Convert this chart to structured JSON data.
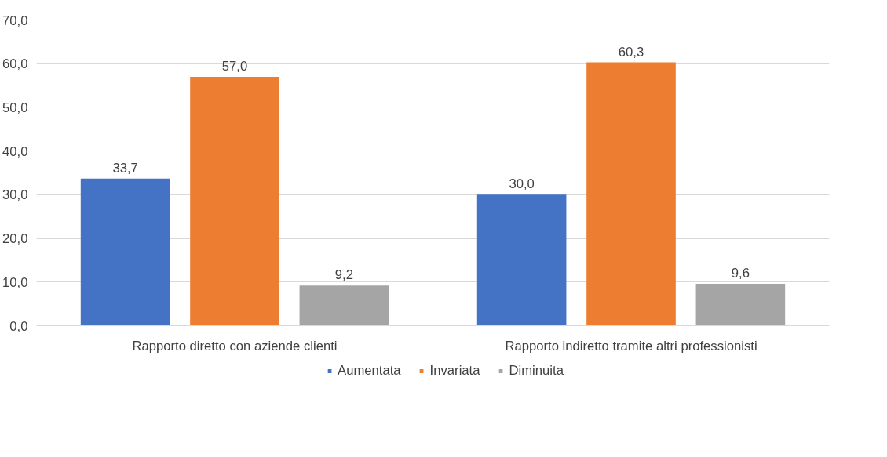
{
  "chart_data": {
    "type": "bar",
    "categories": [
      "Rapporto diretto con aziende clienti",
      "Rapporto indiretto tramite altri professionisti"
    ],
    "series": [
      {
        "name": "Aumentata",
        "color": "#4472c4",
        "values": [
          33.7,
          30.0
        ],
        "value_labels": [
          "33,7",
          "30,0"
        ]
      },
      {
        "name": "Invariata",
        "color": "#ed7d31",
        "values": [
          57.0,
          60.3
        ],
        "value_labels": [
          "57,0",
          "60,3"
        ]
      },
      {
        "name": "Diminuita",
        "color": "#a5a5a5",
        "values": [
          9.2,
          9.6
        ],
        "value_labels": [
          "9,2",
          "9,6"
        ]
      }
    ],
    "ylim": [
      0,
      70
    ],
    "yticks": [
      {
        "value": 0,
        "label": "0,0"
      },
      {
        "value": 10,
        "label": "10,0"
      },
      {
        "value": 20,
        "label": "20,0"
      },
      {
        "value": 30,
        "label": "30,0"
      },
      {
        "value": 40,
        "label": "40,0"
      },
      {
        "value": 50,
        "label": "50,0"
      },
      {
        "value": 60,
        "label": "60,0"
      },
      {
        "value": 70,
        "label": "70,0"
      }
    ],
    "grid": "y",
    "legend": "bottom"
  }
}
